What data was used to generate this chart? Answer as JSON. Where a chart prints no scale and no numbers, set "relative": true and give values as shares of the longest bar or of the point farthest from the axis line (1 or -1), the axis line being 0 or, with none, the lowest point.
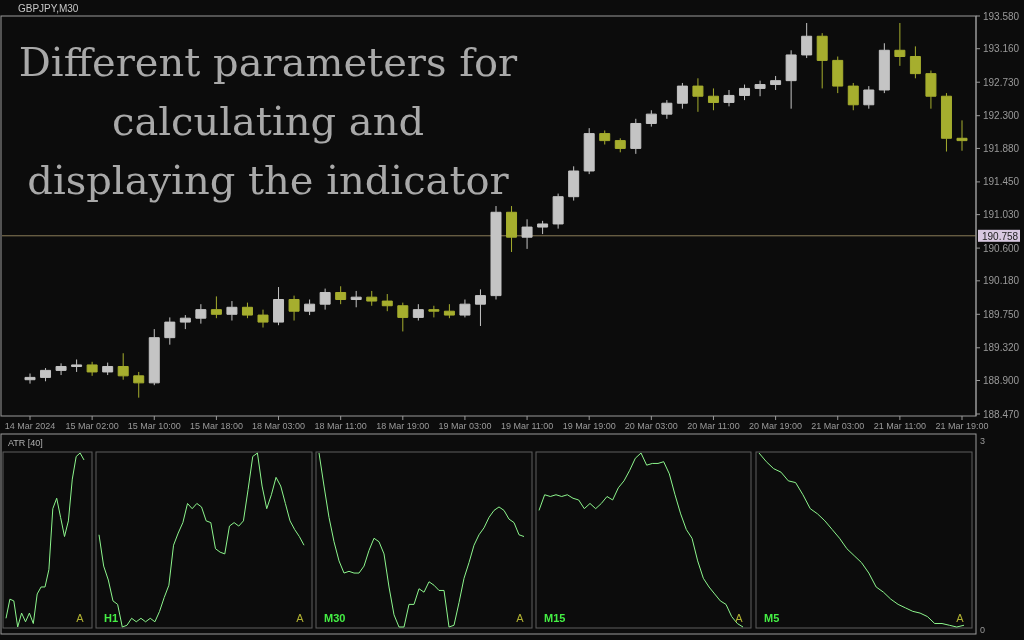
{
  "chart_data": [
    {
      "type": "candlestick",
      "title": "GBPJPY,M30",
      "annotations": [
        "Different parameters for calculating and displaying the indicator"
      ],
      "categories": [
        "14 Mar 2024",
        null,
        null,
        null,
        "15 Mar 02:00",
        null,
        null,
        null,
        "15 Mar 10:00",
        null,
        null,
        null,
        "15 Mar 18:00",
        null,
        null,
        null,
        "18 Mar 03:00",
        null,
        null,
        null,
        "18 Mar 11:00",
        null,
        null,
        null,
        "18 Mar 19:00",
        null,
        null,
        null,
        "19 Mar 03:00",
        null,
        null,
        null,
        "19 Mar 11:00",
        null,
        null,
        null,
        "19 Mar 19:00",
        null,
        null,
        null,
        "20 Mar 03:00",
        null,
        null,
        null,
        "20 Mar 11:00",
        null,
        null,
        null,
        "20 Mar 19:00",
        null,
        null,
        null,
        "21 Mar 03:00",
        null,
        null,
        null,
        "21 Mar 11:00",
        null,
        null,
        null,
        "21 Mar 19:00"
      ],
      "ohlc": [
        [
          188.91,
          188.99,
          188.86,
          188.94
        ],
        [
          188.94,
          189.06,
          188.89,
          189.03
        ],
        [
          189.03,
          189.12,
          188.97,
          189.08
        ],
        [
          189.08,
          189.17,
          189.01,
          189.1
        ],
        [
          189.1,
          189.14,
          188.96,
          189.01
        ],
        [
          189.01,
          189.13,
          188.97,
          189.08
        ],
        [
          189.08,
          189.25,
          188.91,
          188.96
        ],
        [
          188.96,
          189.01,
          188.68,
          188.87
        ],
        [
          188.87,
          189.56,
          188.84,
          189.45
        ],
        [
          189.45,
          189.71,
          189.36,
          189.65
        ],
        [
          189.65,
          189.74,
          189.56,
          189.7
        ],
        [
          189.7,
          189.88,
          189.63,
          189.81
        ],
        [
          189.81,
          189.98,
          189.7,
          189.75
        ],
        [
          189.75,
          189.92,
          189.67,
          189.84
        ],
        [
          189.84,
          189.9,
          189.7,
          189.74
        ],
        [
          189.74,
          189.81,
          189.58,
          189.65
        ],
        [
          189.65,
          190.1,
          189.61,
          189.94
        ],
        [
          189.94,
          189.99,
          189.67,
          189.79
        ],
        [
          189.79,
          189.94,
          189.74,
          189.88
        ],
        [
          189.88,
          190.08,
          189.81,
          190.03
        ],
        [
          190.03,
          190.11,
          189.88,
          189.94
        ],
        [
          189.94,
          190.05,
          189.84,
          189.97
        ],
        [
          189.97,
          190.05,
          189.86,
          189.92
        ],
        [
          189.92,
          190.01,
          189.79,
          189.86
        ],
        [
          189.86,
          189.9,
          189.53,
          189.71
        ],
        [
          189.71,
          189.88,
          189.67,
          189.81
        ],
        [
          189.81,
          189.86,
          189.71,
          189.79
        ],
        [
          189.79,
          189.88,
          189.7,
          189.74
        ],
        [
          189.74,
          189.94,
          189.71,
          189.88
        ],
        [
          189.88,
          190.07,
          189.6,
          189.99
        ],
        [
          189.99,
          191.14,
          189.94,
          191.06
        ],
        [
          191.06,
          191.14,
          190.55,
          190.74
        ],
        [
          190.74,
          190.97,
          190.59,
          190.87
        ],
        [
          190.87,
          190.95,
          190.78,
          190.91
        ],
        [
          190.91,
          191.3,
          190.85,
          191.26
        ],
        [
          191.26,
          191.65,
          191.21,
          191.59
        ],
        [
          191.59,
          192.14,
          191.55,
          192.07
        ],
        [
          192.07,
          192.11,
          191.93,
          191.98
        ],
        [
          191.98,
          192.01,
          191.83,
          191.88
        ],
        [
          191.88,
          192.26,
          191.81,
          192.2
        ],
        [
          192.2,
          192.37,
          192.16,
          192.32
        ],
        [
          192.32,
          192.5,
          192.26,
          192.46
        ],
        [
          192.46,
          192.72,
          192.39,
          192.68
        ],
        [
          192.68,
          192.78,
          192.35,
          192.55
        ],
        [
          192.55,
          192.65,
          192.37,
          192.47
        ],
        [
          192.47,
          192.63,
          192.42,
          192.56
        ],
        [
          192.56,
          192.7,
          192.5,
          192.65
        ],
        [
          192.65,
          192.75,
          192.55,
          192.7
        ],
        [
          192.7,
          192.81,
          192.63,
          192.75
        ],
        [
          192.75,
          193.14,
          192.39,
          193.08
        ],
        [
          193.08,
          193.49,
          193.04,
          193.32
        ],
        [
          193.32,
          193.36,
          192.65,
          193.01
        ],
        [
          193.01,
          193.06,
          192.59,
          192.68
        ],
        [
          192.68,
          192.72,
          192.37,
          192.44
        ],
        [
          192.44,
          192.68,
          192.39,
          192.63
        ],
        [
          192.63,
          193.23,
          192.59,
          193.14
        ],
        [
          193.14,
          193.49,
          192.94,
          193.06
        ],
        [
          193.06,
          193.19,
          192.78,
          192.84
        ],
        [
          192.84,
          192.88,
          192.39,
          192.55
        ],
        [
          192.55,
          192.59,
          191.84,
          192.01
        ],
        [
          192.01,
          192.24,
          191.85,
          191.98
        ]
      ],
      "colors": [
        "#c4c4c4",
        "#c4c4c4",
        "#c4c4c4",
        "#c4c4c4",
        "#a6ae2e",
        "#c4c4c4",
        "#a6ae2e",
        "#a6ae2e",
        "#c4c4c4",
        "#c4c4c4",
        "#c4c4c4",
        "#c4c4c4",
        "#a6ae2e",
        "#c4c4c4",
        "#a6ae2e",
        "#a6ae2e",
        "#c4c4c4",
        "#a6ae2e",
        "#c4c4c4",
        "#c4c4c4",
        "#a6ae2e",
        "#c4c4c4",
        "#a6ae2e",
        "#a6ae2e",
        "#a6ae2e",
        "#c4c4c4",
        "#a6ae2e",
        "#a6ae2e",
        "#c4c4c4",
        "#c4c4c4",
        "#c4c4c4",
        "#a6ae2e",
        "#c4c4c4",
        "#c4c4c4",
        "#c4c4c4",
        "#c4c4c4",
        "#c4c4c4",
        "#a6ae2e",
        "#a6ae2e",
        "#c4c4c4",
        "#c4c4c4",
        "#c4c4c4",
        "#c4c4c4",
        "#a6ae2e",
        "#a6ae2e",
        "#c4c4c4",
        "#c4c4c4",
        "#c4c4c4",
        "#c4c4c4",
        "#c4c4c4",
        "#c4c4c4",
        "#a6ae2e",
        "#a6ae2e",
        "#a6ae2e",
        "#c4c4c4",
        "#c4c4c4",
        "#a6ae2e",
        "#a6ae2e",
        "#a6ae2e",
        "#a6ae2e",
        "#a6ae2e"
      ],
      "ylim": [
        188.47,
        193.58
      ],
      "yticks": [
        {
          "value": 188.47,
          "label": "188.470"
        },
        {
          "value": 188.9,
          "label": "188.900"
        },
        {
          "value": 189.32,
          "label": "189.320"
        },
        {
          "value": 189.75,
          "label": "189.750"
        },
        {
          "value": 190.18,
          "label": "190.180"
        },
        {
          "value": 190.6,
          "label": "190.600"
        },
        {
          "value": 191.03,
          "label": "191.030"
        },
        {
          "value": 191.45,
          "label": "191.450"
        },
        {
          "value": 191.88,
          "label": "191.880"
        },
        {
          "value": 192.3,
          "label": "192.300"
        },
        {
          "value": 192.73,
          "label": "192.730"
        },
        {
          "value": 193.16,
          "label": "193.160"
        },
        {
          "value": 193.58,
          "label": "193.580"
        }
      ],
      "ref_lines": [
        {
          "axis": "y",
          "value": 190.758,
          "label": "190.758",
          "color": "#8a7c58"
        }
      ]
    },
    {
      "type": "other",
      "title": "ATR [40]",
      "annotations": [
        "3",
        "0"
      ]
    },
    {
      "type": "line",
      "relative": true,
      "color": "#8cf58c",
      "annotations": [
        "A"
      ],
      "categories": [
        null,
        null,
        null,
        null,
        null,
        null,
        null,
        null,
        null,
        null,
        null,
        null,
        null,
        null,
        null,
        null,
        null,
        null,
        null,
        null,
        null
      ],
      "values": [
        0.05,
        0.16,
        0.15,
        0,
        0.08,
        0.03,
        0.08,
        0.02,
        0.19,
        0.23,
        0.23,
        0.33,
        0.68,
        0.74,
        0.63,
        0.52,
        0.61,
        0.85,
        0.98,
        1,
        0.96
      ]
    },
    {
      "type": "line",
      "relative": true,
      "title": "H1",
      "color": "#8cf58c",
      "annotations": [
        "A"
      ],
      "categories": [
        null,
        null,
        null,
        null,
        null,
        null,
        null,
        null,
        null,
        null,
        null,
        null,
        null,
        null,
        null,
        null,
        null,
        null,
        null,
        null,
        null,
        null,
        null,
        null,
        null,
        null,
        null,
        null,
        null,
        null,
        null,
        null,
        null,
        null,
        null,
        null,
        null,
        null,
        null,
        null,
        null,
        null,
        null,
        null,
        null
      ],
      "values": [
        0.53,
        0.35,
        0.27,
        0.15,
        0.13,
        0,
        0.01,
        0.05,
        0.03,
        0.05,
        0.03,
        0.05,
        0.03,
        0.09,
        0.17,
        0.24,
        0.47,
        0.54,
        0.6,
        0.71,
        0.68,
        0.71,
        0.69,
        0.61,
        0.6,
        0.45,
        0.43,
        0.42,
        0.58,
        0.6,
        0.58,
        0.61,
        0.79,
        0.98,
        1,
        0.81,
        0.68,
        0.76,
        0.86,
        0.81,
        0.71,
        0.61,
        0.56,
        0.52,
        0.47
      ]
    },
    {
      "type": "line",
      "relative": true,
      "title": "M30",
      "color": "#8cf58c",
      "annotations": [
        "A"
      ],
      "categories": [
        null,
        null,
        null,
        null,
        null,
        null,
        null,
        null,
        null,
        null,
        null,
        null,
        null,
        null,
        null,
        null,
        null,
        null,
        null,
        null,
        null,
        null,
        null,
        null,
        null,
        null,
        null,
        null,
        null,
        null,
        null,
        null,
        null,
        null,
        null,
        null,
        null,
        null,
        null,
        null,
        null,
        null
      ],
      "values": [
        1,
        0.81,
        0.63,
        0.49,
        0.38,
        0.31,
        0.32,
        0.31,
        0.31,
        0.35,
        0.44,
        0.51,
        0.49,
        0.42,
        0.23,
        0.07,
        0,
        0,
        0.13,
        0.13,
        0.22,
        0.2,
        0.26,
        0.24,
        0.21,
        0.21,
        0,
        0.01,
        0.14,
        0.28,
        0.37,
        0.47,
        0.53,
        0.57,
        0.63,
        0.67,
        0.69,
        0.67,
        0.62,
        0.6,
        0.53,
        0.52
      ]
    },
    {
      "type": "line",
      "relative": true,
      "title": "M15",
      "color": "#8cf58c",
      "annotations": [
        "A"
      ],
      "categories": [
        null,
        null,
        null,
        null,
        null,
        null,
        null,
        null,
        null,
        null,
        null,
        null,
        null,
        null,
        null,
        null,
        null,
        null,
        null,
        null,
        null,
        null,
        null,
        null,
        null,
        null,
        null,
        null,
        null,
        null,
        null,
        null,
        null,
        null,
        null,
        null,
        null
      ],
      "values": [
        0.67,
        0.76,
        0.75,
        0.76,
        0.75,
        0.76,
        0.74,
        0.73,
        0.68,
        0.71,
        0.68,
        0.71,
        0.75,
        0.73,
        0.8,
        0.84,
        0.9,
        0.97,
        1,
        0.93,
        0.94,
        0.94,
        0.95,
        0.88,
        0.76,
        0.65,
        0.56,
        0.51,
        0.38,
        0.28,
        0.23,
        0.19,
        0.15,
        0.13,
        0.06,
        0.02,
        0
      ]
    },
    {
      "type": "line",
      "relative": true,
      "title": "M5",
      "color": "#8cf58c",
      "annotations": [
        "A"
      ],
      "categories": [
        null,
        null,
        null,
        null,
        null,
        null,
        null,
        null,
        null,
        null,
        null,
        null,
        null,
        null,
        null,
        null,
        null,
        null,
        null,
        null,
        null,
        null,
        null,
        null,
        null,
        null,
        null,
        null,
        null
      ],
      "values": [
        1,
        0.95,
        0.91,
        0.89,
        0.84,
        0.83,
        0.76,
        0.68,
        0.65,
        0.61,
        0.56,
        0.51,
        0.45,
        0.41,
        0.37,
        0.31,
        0.23,
        0.2,
        0.16,
        0.13,
        0.11,
        0.09,
        0.08,
        0.06,
        0.02,
        0.02,
        0.01,
        0,
        0.01
      ]
    }
  ]
}
